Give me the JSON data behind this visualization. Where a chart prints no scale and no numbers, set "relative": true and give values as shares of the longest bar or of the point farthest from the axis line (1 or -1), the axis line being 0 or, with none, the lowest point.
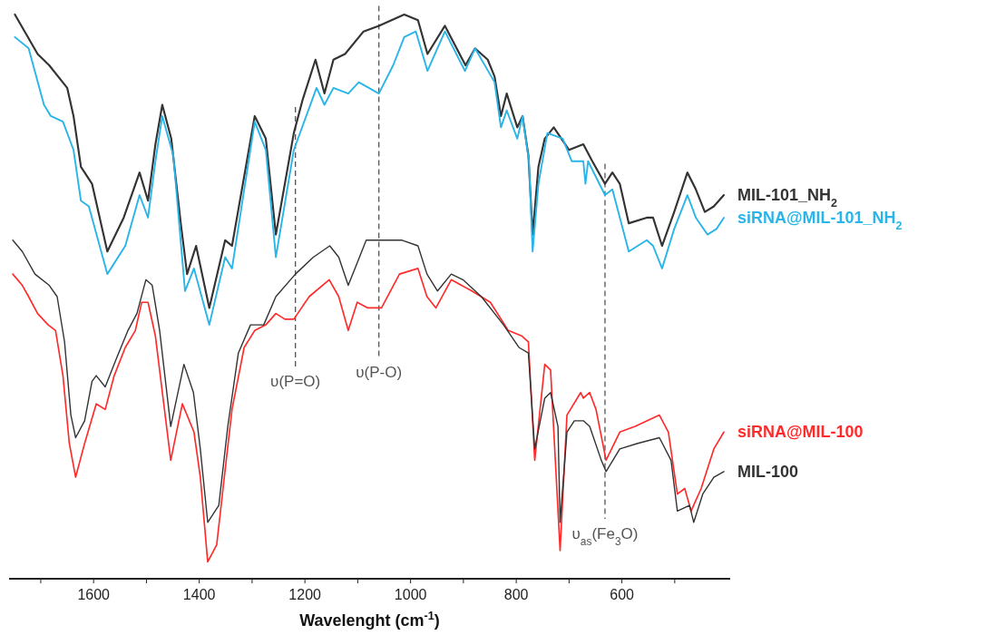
{
  "chart_data": {
    "type": "line",
    "relative": true,
    "xlabel": "Wavelenght (cm$^{-1}$)",
    "xlim": [
      1760,
      395
    ],
    "xticks": [
      {
        "value": 1700,
        "label": null
      },
      1600,
      {
        "value": 1500,
        "label": null
      },
      1400,
      {
        "value": 1300,
        "label": null
      },
      1200,
      {
        "value": 1100,
        "label": null
      },
      1000,
      {
        "value": 900,
        "label": null
      },
      800,
      {
        "value": 700,
        "label": null
      },
      600,
      {
        "value": 500,
        "label": null
      }
    ],
    "tick_labels": "x",
    "grid": false,
    "ref_lines": [
      {
        "axis": "x",
        "value": 1218,
        "label": "υ(P=O)",
        "line_style": "dashed",
        "color": "#555555"
      },
      {
        "axis": "x",
        "value": 1060,
        "label": "υ(P-O)",
        "line_style": "dashed",
        "color": "#555555"
      },
      {
        "axis": "x",
        "value": 632,
        "label": "υ$_{as}$(Fe$_{3}$O)",
        "line_style": "dashed",
        "color": "#555555"
      }
    ],
    "series": [
      {
        "name": "MIL-101_NH$_{2}$",
        "color": "#333333",
        "x": [
          1749,
          1706,
          1684,
          1650,
          1638,
          1624,
          1603,
          1574,
          1543,
          1513,
          1497,
          1483,
          1470,
          1453,
          1435,
          1423,
          1406,
          1381,
          1351,
          1338,
          1295,
          1274,
          1255,
          1221,
          1204,
          1180,
          1163,
          1146,
          1124,
          1089,
          1060,
          1012,
          986,
          968,
          935,
          896,
          878,
          854,
          841,
          829,
          818,
          798,
          788,
          777,
          769,
          758,
          746,
          729,
          700,
          673,
          656,
          632,
          618,
          604,
          587,
          553,
          541,
          524,
          501,
          476,
          460,
          443,
          426,
          407
        ],
        "values": [
          1.0,
          0.93,
          0.91,
          0.87,
          0.82,
          0.73,
          0.7,
          0.58,
          0.64,
          0.72,
          0.67,
          0.77,
          0.84,
          0.78,
          0.63,
          0.54,
          0.59,
          0.48,
          0.6,
          0.59,
          0.82,
          0.78,
          0.61,
          0.79,
          0.85,
          0.92,
          0.86,
          0.92,
          0.93,
          0.97,
          0.98,
          1.0,
          0.99,
          0.93,
          0.98,
          0.91,
          0.94,
          0.92,
          0.89,
          0.82,
          0.86,
          0.8,
          0.82,
          0.75,
          0.61,
          0.73,
          0.78,
          0.8,
          0.76,
          0.77,
          0.74,
          0.7,
          0.72,
          0.7,
          0.63,
          0.64,
          0.64,
          0.59,
          0.65,
          0.72,
          0.69,
          0.65,
          0.66,
          0.68
        ]
      },
      {
        "name": "siRNA@MIL-101_NH$_{2}$",
        "color": "#29b5e8",
        "x": [
          1749,
          1723,
          1694,
          1681,
          1658,
          1638,
          1624,
          1609,
          1574,
          1540,
          1513,
          1497,
          1483,
          1470,
          1449,
          1427,
          1410,
          1381,
          1351,
          1338,
          1295,
          1274,
          1255,
          1221,
          1178,
          1163,
          1146,
          1118,
          1098,
          1060,
          1033,
          1012,
          990,
          968,
          935,
          897,
          878,
          841,
          829,
          818,
          798,
          788,
          776,
          769,
          758,
          741,
          712,
          695,
          673,
          669,
          664,
          632,
          618,
          587,
          553,
          541,
          524,
          501,
          476,
          460,
          438,
          421,
          407
        ],
        "values": [
          0.96,
          0.94,
          0.84,
          0.82,
          0.81,
          0.76,
          0.67,
          0.66,
          0.54,
          0.59,
          0.68,
          0.64,
          0.74,
          0.82,
          0.75,
          0.51,
          0.55,
          0.45,
          0.57,
          0.55,
          0.81,
          0.76,
          0.57,
          0.76,
          0.87,
          0.84,
          0.87,
          0.86,
          0.88,
          0.86,
          0.91,
          0.96,
          0.97,
          0.9,
          0.97,
          0.9,
          0.94,
          0.88,
          0.8,
          0.83,
          0.78,
          0.82,
          0.74,
          0.58,
          0.7,
          0.79,
          0.78,
          0.74,
          0.74,
          0.7,
          0.74,
          0.68,
          0.69,
          0.58,
          0.6,
          0.59,
          0.55,
          0.62,
          0.68,
          0.64,
          0.61,
          0.62,
          0.64
        ]
      },
      {
        "name": "siRNA@MIL-100",
        "color": "#ff2a2a",
        "x": [
          1753,
          1735,
          1723,
          1706,
          1686,
          1672,
          1658,
          1646,
          1634,
          1617,
          1595,
          1578,
          1561,
          1540,
          1521,
          1509,
          1497,
          1483,
          1454,
          1432,
          1410,
          1398,
          1384,
          1367,
          1355,
          1338,
          1315,
          1295,
          1274,
          1255,
          1238,
          1221,
          1192,
          1154,
          1136,
          1118,
          1101,
          1081,
          1055,
          1021,
          986,
          969,
          952,
          923,
          884,
          849,
          815,
          789,
          777,
          765,
          746,
          735,
          717,
          704,
          678,
          673,
          661,
          649,
          630,
          604,
          575,
          529,
          512,
          495,
          481,
          469,
          450,
          426,
          407
        ],
        "values": [
          0.54,
          0.52,
          0.5,
          0.47,
          0.45,
          0.44,
          0.36,
          0.24,
          0.18,
          0.24,
          0.31,
          0.3,
          0.36,
          0.41,
          0.44,
          0.49,
          0.49,
          0.43,
          0.21,
          0.31,
          0.26,
          0.18,
          0.03,
          0.06,
          0.16,
          0.3,
          0.41,
          0.44,
          0.45,
          0.47,
          0.46,
          0.46,
          0.5,
          0.53,
          0.5,
          0.44,
          0.49,
          0.48,
          0.48,
          0.54,
          0.55,
          0.5,
          0.48,
          0.53,
          0.51,
          0.49,
          0.44,
          0.43,
          0.42,
          0.21,
          0.38,
          0.37,
          0.05,
          0.29,
          0.33,
          0.32,
          0.33,
          0.3,
          0.21,
          0.26,
          0.27,
          0.29,
          0.26,
          0.15,
          0.16,
          0.12,
          0.16,
          0.23,
          0.26
        ]
      },
      {
        "name": "MIL-100",
        "color": "#333333",
        "x": [
          1753,
          1735,
          1711,
          1684,
          1669,
          1655,
          1643,
          1634,
          1617,
          1603,
          1595,
          1578,
          1557,
          1535,
          1518,
          1501,
          1489,
          1475,
          1454,
          1429,
          1411,
          1398,
          1384,
          1363,
          1346,
          1326,
          1303,
          1278,
          1255,
          1218,
          1184,
          1153,
          1136,
          1118,
          1101,
          1084,
          1060,
          1043,
          1016,
          986,
          969,
          949,
          923,
          901,
          866,
          824,
          795,
          777,
          765,
          746,
          735,
          721,
          717,
          704,
          690,
          673,
          661,
          639,
          630,
          604,
          570,
          529,
          507,
          495,
          472,
          464,
          447,
          426,
          407
        ],
        "values": [
          0.6,
          0.58,
          0.54,
          0.52,
          0.5,
          0.42,
          0.29,
          0.25,
          0.28,
          0.35,
          0.36,
          0.34,
          0.39,
          0.44,
          0.47,
          0.53,
          0.52,
          0.44,
          0.27,
          0.38,
          0.33,
          0.23,
          0.1,
          0.13,
          0.27,
          0.4,
          0.45,
          0.45,
          0.5,
          0.54,
          0.57,
          0.59,
          0.57,
          0.52,
          0.56,
          0.6,
          0.6,
          0.6,
          0.6,
          0.59,
          0.54,
          0.51,
          0.54,
          0.53,
          0.5,
          0.45,
          0.41,
          0.4,
          0.23,
          0.32,
          0.33,
          0.27,
          0.1,
          0.26,
          0.28,
          0.28,
          0.27,
          0.21,
          0.19,
          0.23,
          0.24,
          0.25,
          0.21,
          0.12,
          0.13,
          0.1,
          0.15,
          0.18,
          0.19
        ]
      }
    ]
  }
}
